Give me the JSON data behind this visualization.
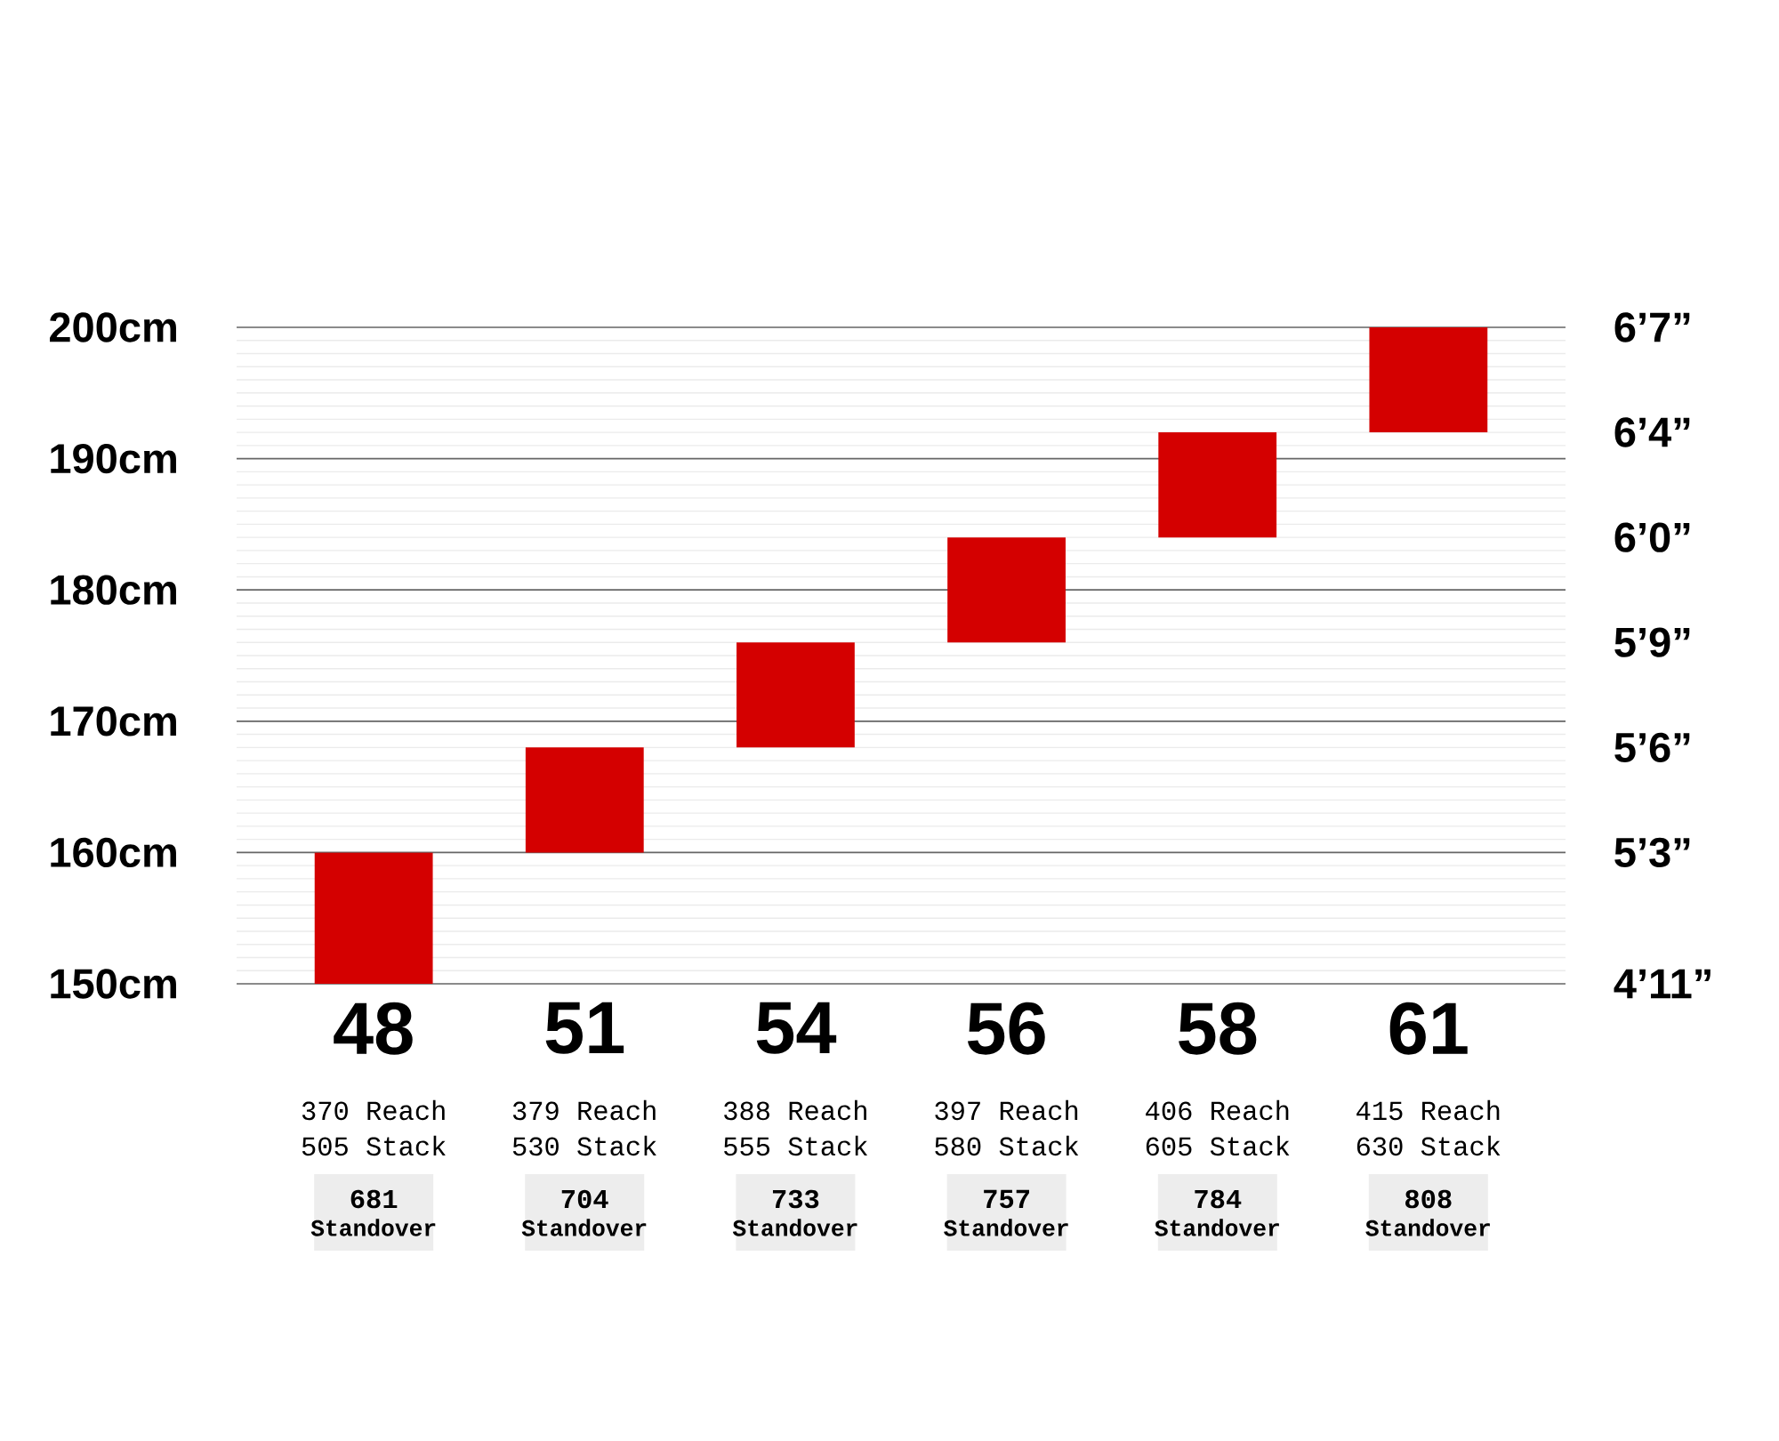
{
  "chart_data": {
    "type": "bar",
    "categories": [
      "48",
      "51",
      "54",
      "56",
      "58",
      "61"
    ],
    "base": [
      150,
      160,
      168,
      176,
      184,
      192
    ],
    "values": [
      10,
      8,
      8,
      8,
      8,
      8
    ],
    "color": "#d40000",
    "ylim": [
      150,
      200
    ],
    "yticks": [
      {
        "value": 150,
        "label": "150cm"
      },
      {
        "value": 160,
        "label": "160cm"
      },
      {
        "value": 170,
        "label": "170cm"
      },
      {
        "value": 180,
        "label": "180cm"
      },
      {
        "value": 190,
        "label": "190cm"
      },
      {
        "value": 200,
        "label": "200cm"
      }
    ],
    "grid": "y",
    "annotations": [
      "4’11”",
      "5’3”",
      "5’6”",
      "5’9”",
      "6’0”",
      "6’4”",
      "6’7”",
      "370 Reach",
      "505 Stack",
      "681",
      "Standover",
      "379 Reach",
      "530 Stack",
      "704",
      "Standover",
      "388 Reach",
      "555 Stack",
      "733",
      "Standover",
      "397 Reach",
      "580 Stack",
      "757",
      "Standover",
      "406 Reach",
      "605 Stack",
      "784",
      "Standover",
      "415 Reach",
      "630 Stack",
      "808",
      "Standover"
    ]
  }
}
